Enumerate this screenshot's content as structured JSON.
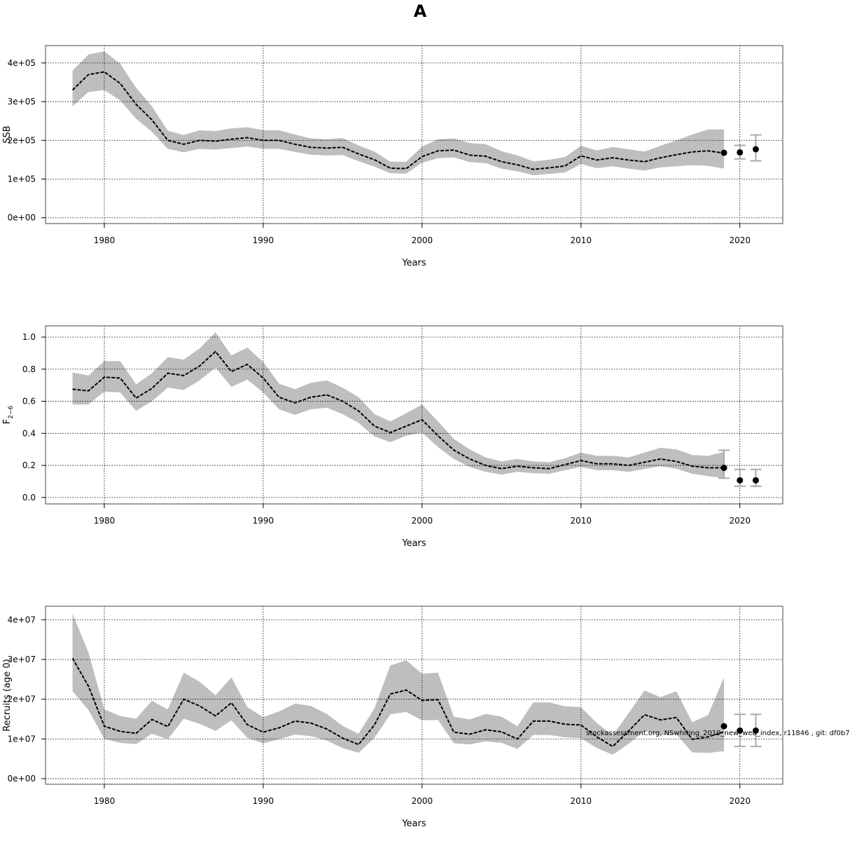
{
  "figure": {
    "title": "A",
    "watermark": "stockassessment.org, NSwhiting_2019_new_web_index, r11846 , git: df0b7"
  },
  "chart_data": [
    {
      "type": "line",
      "xlabel": "Years",
      "ylabel": "SSB",
      "xlim": [
        1976.3,
        2022.7
      ],
      "ylim": [
        -15000,
        445000
      ],
      "x_ticks": [
        1980,
        1990,
        2000,
        2010,
        2020
      ],
      "y_ticks": [
        0,
        100000,
        200000,
        300000,
        400000
      ],
      "x_tick_labels": [
        "1980",
        "1990",
        "2000",
        "2010",
        "2020"
      ],
      "y_tick_labels": [
        "0e+00",
        "1e+05",
        "2e+05",
        "3e+05",
        "4e+05"
      ],
      "grid": true,
      "years": [
        1978,
        1979,
        1980,
        1981,
        1982,
        1983,
        1984,
        1985,
        1986,
        1987,
        1988,
        1989,
        1990,
        1991,
        1992,
        1993,
        1994,
        1995,
        1996,
        1997,
        1998,
        1999,
        2000,
        2001,
        2002,
        2003,
        2004,
        2005,
        2006,
        2007,
        2008,
        2009,
        2010,
        2011,
        2012,
        2013,
        2014,
        2015,
        2016,
        2017,
        2018,
        2019
      ],
      "estimate": [
        330000,
        370000,
        377000,
        347000,
        293000,
        253000,
        200000,
        190000,
        200000,
        198000,
        203000,
        207000,
        200000,
        200000,
        190000,
        182000,
        180000,
        182000,
        165000,
        150000,
        128000,
        127000,
        158000,
        173000,
        175000,
        162000,
        159000,
        145000,
        137000,
        125000,
        129000,
        134000,
        160000,
        149000,
        155000,
        149000,
        145000,
        155000,
        163000,
        170000,
        173000,
        167000
      ],
      "lower": [
        288000,
        325000,
        330000,
        303000,
        256000,
        222000,
        178000,
        169000,
        178000,
        176000,
        180000,
        184000,
        178000,
        178000,
        170000,
        163000,
        161000,
        162000,
        146000,
        132000,
        115000,
        114000,
        142000,
        154000,
        156000,
        144000,
        141000,
        127000,
        120000,
        110000,
        113000,
        117000,
        139000,
        128000,
        133000,
        127000,
        122000,
        130000,
        133000,
        136000,
        134000,
        127000
      ],
      "upper": [
        380000,
        422000,
        430000,
        398000,
        336000,
        288000,
        225000,
        214000,
        226000,
        224000,
        231000,
        234000,
        226000,
        226000,
        215000,
        205000,
        203000,
        206000,
        187000,
        171000,
        145000,
        145000,
        184000,
        203000,
        205000,
        193000,
        190000,
        172000,
        161000,
        146000,
        150000,
        157000,
        186000,
        174000,
        183000,
        177000,
        171000,
        186000,
        200000,
        215000,
        228000,
        228000
      ],
      "forecast": [
        {
          "year": 2019,
          "value": 168000
        },
        {
          "year": 2020,
          "value": 169000,
          "lower": 152000,
          "upper": 187000
        },
        {
          "year": 2021,
          "value": 177000,
          "lower": 147000,
          "upper": 214000
        }
      ]
    },
    {
      "type": "line",
      "xlabel": "Years",
      "ylabel": "F",
      "ylabel_subscript": "2−6",
      "xlim": [
        1976.3,
        2022.7
      ],
      "ylim": [
        -0.04,
        1.07
      ],
      "x_ticks": [
        1980,
        1990,
        2000,
        2010,
        2020
      ],
      "y_ticks": [
        0,
        0.2,
        0.4,
        0.6,
        0.8,
        1.0
      ],
      "x_tick_labels": [
        "1980",
        "1990",
        "2000",
        "2010",
        "2020"
      ],
      "y_tick_labels": [
        "0.0",
        "0.2",
        "0.4",
        "0.6",
        "0.8",
        "1.0"
      ],
      "grid": true,
      "years": [
        1978,
        1979,
        1980,
        1981,
        1982,
        1983,
        1984,
        1985,
        1986,
        1987,
        1988,
        1989,
        1990,
        1991,
        1992,
        1993,
        1994,
        1995,
        1996,
        1997,
        1998,
        1999,
        2000,
        2001,
        2002,
        2003,
        2004,
        2005,
        2006,
        2007,
        2008,
        2009,
        2010,
        2011,
        2012,
        2013,
        2014,
        2015,
        2016,
        2017,
        2018,
        2019
      ],
      "estimate": [
        0.675,
        0.665,
        0.75,
        0.745,
        0.62,
        0.68,
        0.775,
        0.76,
        0.82,
        0.91,
        0.785,
        0.83,
        0.745,
        0.625,
        0.59,
        0.625,
        0.64,
        0.6,
        0.54,
        0.445,
        0.405,
        0.445,
        0.485,
        0.385,
        0.295,
        0.24,
        0.2,
        0.18,
        0.195,
        0.185,
        0.18,
        0.205,
        0.23,
        0.21,
        0.21,
        0.2,
        0.22,
        0.24,
        0.225,
        0.195,
        0.185,
        0.185
      ],
      "lower": [
        0.58,
        0.58,
        0.66,
        0.655,
        0.54,
        0.6,
        0.685,
        0.67,
        0.73,
        0.81,
        0.69,
        0.735,
        0.655,
        0.55,
        0.515,
        0.55,
        0.56,
        0.52,
        0.465,
        0.38,
        0.345,
        0.385,
        0.405,
        0.315,
        0.24,
        0.19,
        0.16,
        0.143,
        0.16,
        0.152,
        0.148,
        0.17,
        0.19,
        0.17,
        0.17,
        0.16,
        0.178,
        0.195,
        0.18,
        0.148,
        0.133,
        0.12
      ],
      "upper": [
        0.78,
        0.76,
        0.85,
        0.85,
        0.705,
        0.775,
        0.875,
        0.86,
        0.93,
        1.03,
        0.885,
        0.935,
        0.845,
        0.71,
        0.675,
        0.715,
        0.73,
        0.685,
        0.625,
        0.52,
        0.475,
        0.525,
        0.58,
        0.475,
        0.365,
        0.3,
        0.25,
        0.225,
        0.24,
        0.225,
        0.22,
        0.245,
        0.28,
        0.26,
        0.26,
        0.25,
        0.28,
        0.31,
        0.3,
        0.265,
        0.26,
        0.285
      ],
      "forecast": [
        {
          "year": 2019,
          "value": 0.185,
          "lower": 0.12,
          "upper": 0.295
        },
        {
          "year": 2020,
          "value": 0.107,
          "lower": 0.07,
          "upper": 0.175
        },
        {
          "year": 2021,
          "value": 0.107,
          "lower": 0.07,
          "upper": 0.175
        }
      ]
    },
    {
      "type": "line",
      "xlabel": "Years",
      "ylabel": "Recruits (age 0)",
      "xlim": [
        1976.3,
        2022.7
      ],
      "ylim": [
        -1400000,
        43400000
      ],
      "x_ticks": [
        1980,
        1990,
        2000,
        2010,
        2020
      ],
      "y_ticks": [
        0,
        10000000,
        20000000,
        30000000,
        40000000
      ],
      "x_tick_labels": [
        "1980",
        "1990",
        "2000",
        "2010",
        "2020"
      ],
      "y_tick_labels": [
        "0e+00",
        "1e+07",
        "2e+07",
        "3e+07",
        "4e+07"
      ],
      "grid": true,
      "years": [
        1978,
        1979,
        1980,
        1981,
        1982,
        1983,
        1984,
        1985,
        1986,
        1987,
        1988,
        1989,
        1990,
        1991,
        1992,
        1993,
        1994,
        1995,
        1996,
        1997,
        1998,
        1999,
        2000,
        2001,
        2002,
        2003,
        2004,
        2005,
        2006,
        2007,
        2008,
        2009,
        2010,
        2011,
        2012,
        2013,
        2014,
        2015,
        2016,
        2017,
        2018,
        2019
      ],
      "estimate": [
        30300000,
        23300000,
        13200000,
        11900000,
        11400000,
        14900000,
        13100000,
        20000000,
        18300000,
        15800000,
        19100000,
        13600000,
        11700000,
        12800000,
        14500000,
        14000000,
        12500000,
        10200000,
        8600000,
        13500000,
        21300000,
        22300000,
        19700000,
        19900000,
        11700000,
        11200000,
        12300000,
        11800000,
        10000000,
        14500000,
        14500000,
        13700000,
        13500000,
        10500000,
        8100000,
        12000000,
        16100000,
        14800000,
        15400000,
        9900000,
        10500000,
        11800000
      ],
      "lower": [
        22000000,
        17300000,
        10000000,
        9000000,
        8700000,
        11300000,
        9900000,
        15100000,
        13800000,
        12000000,
        14700000,
        10300000,
        8900000,
        9900000,
        11100000,
        10700000,
        9600000,
        7700000,
        6500000,
        10300000,
        16200000,
        16800000,
        14700000,
        14800000,
        8900000,
        8600000,
        9400000,
        9000000,
        7500000,
        11000000,
        11000000,
        10400000,
        10200000,
        7700000,
        6000000,
        8800000,
        12000000,
        11000000,
        11200000,
        6600000,
        6500000,
        6900000
      ],
      "upper": [
        41500000,
        31800000,
        17400000,
        15800000,
        15100000,
        19600000,
        17400000,
        26700000,
        24400000,
        21000000,
        25500000,
        18000000,
        15500000,
        16900000,
        18900000,
        18300000,
        16300000,
        13300000,
        11300000,
        17700000,
        28500000,
        29800000,
        26400000,
        26700000,
        15600000,
        14900000,
        16300000,
        15600000,
        13200000,
        19200000,
        19200000,
        18200000,
        18000000,
        14000000,
        10900000,
        16500000,
        22200000,
        20500000,
        22000000,
        14200000,
        16000000,
        25500000
      ],
      "forecast": [
        {
          "year": 2019,
          "value": 13200000
        },
        {
          "year": 2020,
          "value": 12100000,
          "lower": 8100000,
          "upper": 16200000
        },
        {
          "year": 2021,
          "value": 12100000,
          "lower": 8100000,
          "upper": 16200000
        }
      ]
    }
  ]
}
